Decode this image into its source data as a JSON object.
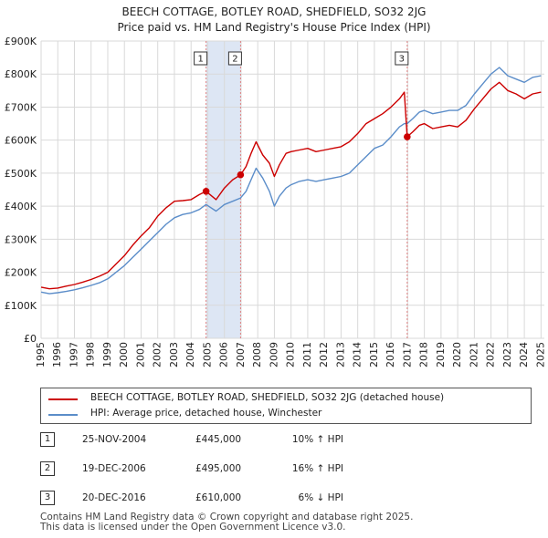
{
  "title_line1": "BEECH COTTAGE, BOTLEY ROAD, SHEDFIELD, SO32 2JG",
  "title_line2": "Price paid vs. HM Land Registry's House Price Index (HPI)",
  "colors": {
    "property": "#cc0000",
    "hpi": "#5b8dc9",
    "shade": "#dde6f4",
    "marker_line": "#e08080"
  },
  "chart_data": {
    "type": "line",
    "title": "Price paid vs. HM Land Registry's House Price Index (HPI)",
    "xlabel": "",
    "ylabel": "",
    "xlim": [
      1995.0,
      2025.2
    ],
    "ylim": [
      0,
      900000
    ],
    "y_ticks": [
      0,
      100000,
      200000,
      300000,
      400000,
      500000,
      600000,
      700000,
      800000,
      900000
    ],
    "y_tick_labels": [
      "£0",
      "£100K",
      "£200K",
      "£300K",
      "£400K",
      "£500K",
      "£600K",
      "£700K",
      "£800K",
      "£900K"
    ],
    "x_ticks": [
      1995,
      1996,
      1997,
      1998,
      1999,
      2000,
      2001,
      2002,
      2003,
      2004,
      2005,
      2006,
      2007,
      2008,
      2009,
      2010,
      2011,
      2012,
      2013,
      2014,
      2015,
      2016,
      2017,
      2018,
      2019,
      2020,
      2021,
      2022,
      2023,
      2024,
      2025
    ],
    "x_tick_labels": [
      "1995",
      "1996",
      "1997",
      "1998",
      "1999",
      "2000",
      "2001",
      "2002",
      "2003",
      "2004",
      "2005",
      "2006",
      "2007",
      "2008",
      "2009",
      "2010",
      "2011",
      "2012",
      "2013",
      "2014",
      "2015",
      "2016",
      "2017",
      "2018",
      "2019",
      "2020",
      "2021",
      "2022",
      "2023",
      "2024",
      "2025"
    ],
    "grid": true,
    "shaded_ranges": [
      [
        2004.9,
        2006.97
      ]
    ],
    "series": [
      {
        "name": "BEECH COTTAGE, BOTLEY ROAD, SHEDFIELD, SO32 2JG (detached house)",
        "x": [
          1995.0,
          1995.5,
          1996.0,
          1996.5,
          1997.0,
          1997.5,
          1998.0,
          1998.5,
          1999.0,
          1999.5,
          2000.0,
          2000.5,
          2001.0,
          2001.5,
          2002.0,
          2002.5,
          2003.0,
          2003.5,
          2004.0,
          2004.5,
          2004.9,
          2005.5,
          2006.0,
          2006.5,
          2006.97,
          2007.3,
          2007.6,
          2007.9,
          2008.3,
          2008.7,
          2009.0,
          2009.3,
          2009.7,
          2010.0,
          2010.5,
          2011.0,
          2011.5,
          2012.0,
          2012.5,
          2013.0,
          2013.5,
          2014.0,
          2014.5,
          2015.0,
          2015.5,
          2016.0,
          2016.5,
          2016.8,
          2016.97,
          2017.3,
          2017.7,
          2018.0,
          2018.5,
          2019.0,
          2019.5,
          2020.0,
          2020.5,
          2021.0,
          2021.5,
          2022.0,
          2022.5,
          2023.0,
          2023.5,
          2024.0,
          2024.5,
          2025.0
        ],
        "values": [
          155000,
          150000,
          152000,
          158000,
          163000,
          170000,
          178000,
          188000,
          200000,
          225000,
          250000,
          282000,
          310000,
          335000,
          370000,
          395000,
          415000,
          417000,
          420000,
          435000,
          445000,
          420000,
          455000,
          480000,
          495000,
          520000,
          560000,
          595000,
          555000,
          530000,
          490000,
          525000,
          560000,
          565000,
          570000,
          575000,
          565000,
          570000,
          575000,
          580000,
          595000,
          620000,
          650000,
          665000,
          680000,
          700000,
          725000,
          745000,
          610000,
          625000,
          645000,
          650000,
          635000,
          640000,
          645000,
          640000,
          660000,
          695000,
          725000,
          755000,
          775000,
          750000,
          740000,
          725000,
          740000,
          745000
        ]
      },
      {
        "name": "HPI: Average price, detached house, Winchester",
        "x": [
          1995.0,
          1995.5,
          1996.0,
          1996.5,
          1997.0,
          1997.5,
          1998.0,
          1998.5,
          1999.0,
          1999.5,
          2000.0,
          2000.5,
          2001.0,
          2001.5,
          2002.0,
          2002.5,
          2003.0,
          2003.5,
          2004.0,
          2004.5,
          2004.9,
          2005.5,
          2006.0,
          2006.5,
          2006.97,
          2007.3,
          2007.6,
          2007.9,
          2008.3,
          2008.7,
          2009.0,
          2009.3,
          2009.7,
          2010.0,
          2010.5,
          2011.0,
          2011.5,
          2012.0,
          2012.5,
          2013.0,
          2013.5,
          2014.0,
          2014.5,
          2015.0,
          2015.5,
          2016.0,
          2016.5,
          2016.8,
          2016.97,
          2017.3,
          2017.7,
          2018.0,
          2018.5,
          2019.0,
          2019.5,
          2020.0,
          2020.5,
          2021.0,
          2021.5,
          2022.0,
          2022.5,
          2023.0,
          2023.5,
          2024.0,
          2024.5,
          2025.0
        ],
        "values": [
          140000,
          135000,
          138000,
          142000,
          147000,
          153000,
          160000,
          168000,
          180000,
          200000,
          220000,
          245000,
          270000,
          295000,
          320000,
          345000,
          365000,
          375000,
          380000,
          390000,
          405000,
          385000,
          405000,
          415000,
          425000,
          445000,
          480000,
          515000,
          485000,
          445000,
          400000,
          430000,
          455000,
          465000,
          475000,
          480000,
          475000,
          480000,
          485000,
          490000,
          500000,
          525000,
          550000,
          575000,
          585000,
          610000,
          640000,
          650000,
          650000,
          665000,
          685000,
          690000,
          680000,
          685000,
          690000,
          690000,
          705000,
          740000,
          770000,
          800000,
          820000,
          795000,
          785000,
          775000,
          790000,
          795000
        ]
      }
    ],
    "sales": [
      {
        "num": "1",
        "x": 2004.9,
        "value": 445000
      },
      {
        "num": "2",
        "x": 2006.97,
        "value": 495000
      },
      {
        "num": "3",
        "x": 2016.97,
        "value": 610000
      }
    ]
  },
  "legend": {
    "property_label": "BEECH COTTAGE, BOTLEY ROAD, SHEDFIELD, SO32 2JG (detached house)",
    "hpi_label": "HPI: Average price, detached house, Winchester"
  },
  "sales_table": [
    {
      "num": "1",
      "date": "25-NOV-2004",
      "price": "£445,000",
      "hpi": "10% ↑ HPI"
    },
    {
      "num": "2",
      "date": "19-DEC-2006",
      "price": "£495,000",
      "hpi": "16% ↑ HPI"
    },
    {
      "num": "3",
      "date": "20-DEC-2016",
      "price": "£610,000",
      "hpi": "6% ↓ HPI"
    }
  ],
  "footer": {
    "line1": "Contains HM Land Registry data © Crown copyright and database right 2025.",
    "line2": "This data is licensed under the Open Government Licence v3.0."
  }
}
